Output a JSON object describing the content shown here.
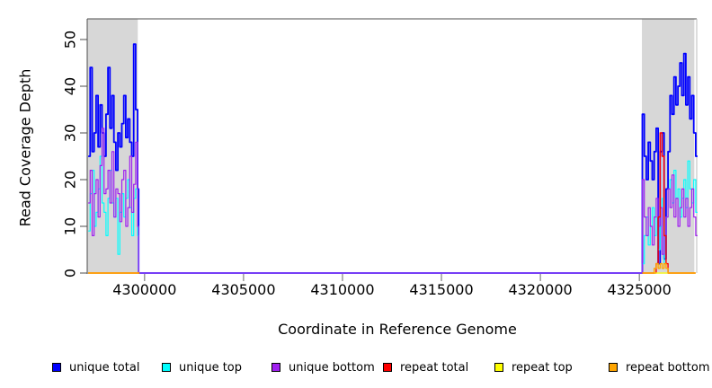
{
  "figure": {
    "xlabel": "Coordinate in Reference Genome",
    "ylabel": "Read Coverage Depth"
  },
  "chart_data": {
    "type": "line",
    "line_style": "step",
    "title": "",
    "xlabel": "Coordinate in Reference Genome",
    "ylabel": "Read Coverage Depth",
    "xlim": [
      4297100,
      4327900
    ],
    "ylim": [
      0,
      54
    ],
    "xticks": [
      4300000,
      4305000,
      4310000,
      4315000,
      4320000,
      4325000
    ],
    "yticks": [
      0,
      10,
      20,
      30,
      40,
      50
    ],
    "grid": false,
    "legend_position": "bottom",
    "shaded_regions": [
      {
        "name": "left-repeat-flank",
        "x0": 4297100,
        "x1": 4299655,
        "color": "#d7d7d7"
      },
      {
        "name": "right-repeat-flank",
        "x0": 4325130,
        "x1": 4327780,
        "color": "#d7d7d7"
      }
    ],
    "series": [
      {
        "name": "unique total",
        "color": "#0000ff",
        "width": 1.8,
        "segments": [
          {
            "x": [
              4297150,
              4297250,
              4297350,
              4297450,
              4297550,
              4297650,
              4297750,
              4297850,
              4297950,
              4298050,
              4298150,
              4298250,
              4298350,
              4298450,
              4298550,
              4298650,
              4298750,
              4298850,
              4298950,
              4299050,
              4299150,
              4299250,
              4299350,
              4299450,
              4299550,
              4299650,
              4299700,
              4325150,
              4325250,
              4325350,
              4325450,
              4325550,
              4325650,
              4325750,
              4325850,
              4325950,
              4326050,
              4326150,
              4326250,
              4326350,
              4326450,
              4326550,
              4326650,
              4326750,
              4326850,
              4326950,
              4327050,
              4327150,
              4327250,
              4327350,
              4327450,
              4327550,
              4327650,
              4327750,
              4327850
            ],
            "y": [
              25,
              44,
              26,
              30,
              38,
              27,
              36,
              30,
              25,
              34,
              44,
              31,
              38,
              28,
              22,
              30,
              27,
              32,
              38,
              29,
              33,
              28,
              25,
              49,
              35,
              18,
              0,
              34,
              25,
              20,
              28,
              24,
              20,
              26,
              31,
              2,
              26,
              30,
              3,
              18,
              26,
              38,
              34,
              42,
              36,
              40,
              45,
              38,
              47,
              36,
              42,
              33,
              38,
              30,
              25
            ]
          }
        ]
      },
      {
        "name": "unique top",
        "color": "#00ffff",
        "width": 1.2,
        "segments": [
          {
            "x": [
              4297150,
              4297250,
              4297350,
              4297450,
              4297550,
              4297650,
              4297750,
              4297850,
              4297950,
              4298050,
              4298150,
              4298250,
              4298350,
              4298450,
              4298550,
              4298650,
              4298750,
              4298850,
              4298950,
              4299050,
              4299150,
              4299250,
              4299350,
              4299450,
              4299550,
              4299650,
              4299700,
              4325150,
              4325250,
              4325350,
              4325450,
              4325550,
              4325650,
              4325750,
              4325850,
              4325950,
              4326050,
              4326150,
              4326250,
              4326350,
              4326450,
              4326550,
              4326650,
              4326750,
              4326850,
              4326950,
              4327050,
              4327150,
              4327250,
              4327350,
              4327450,
              4327550,
              4327650,
              4327750,
              4327850
            ],
            "y": [
              9,
              17,
              22,
              10,
              13,
              18,
              25,
              15,
              13,
              8,
              16,
              22,
              15,
              12,
              16,
              4,
              13,
              17,
              12,
              16,
              20,
              14,
              8,
              16,
              18,
              8,
              0,
              2,
              8,
              12,
              6,
              10,
              14,
              8,
              12,
              5,
              10,
              16,
              2,
              12,
              18,
              20,
              15,
              22,
              16,
              18,
              12,
              16,
              20,
              14,
              24,
              18,
              15,
              20,
              13
            ]
          }
        ]
      },
      {
        "name": "unique bottom",
        "color": "#a020f0",
        "width": 1.2,
        "segments": [
          {
            "x": [
              4297150,
              4297250,
              4297350,
              4297450,
              4297550,
              4297650,
              4297750,
              4297850,
              4297950,
              4298050,
              4298150,
              4298250,
              4298350,
              4298450,
              4298550,
              4298650,
              4298750,
              4298850,
              4298950,
              4299050,
              4299150,
              4299250,
              4299350,
              4299450,
              4299550,
              4299650,
              4299700,
              4325150,
              4325250,
              4325350,
              4325450,
              4325550,
              4325650,
              4325750,
              4325850,
              4325950,
              4326050,
              4326150,
              4326250,
              4326350,
              4326450,
              4326550,
              4326650,
              4326750,
              4326850,
              4326950,
              4327050,
              4327150,
              4327250,
              4327350,
              4327450,
              4327550,
              4327650,
              4327750,
              4327850
            ],
            "y": [
              15,
              22,
              8,
              17,
              20,
              12,
              23,
              31,
              17,
              18,
              22,
              15,
              26,
              12,
              18,
              17,
              11,
              20,
              22,
              10,
              14,
              25,
              13,
              19,
              28,
              10,
              0,
              20,
              12,
              8,
              14,
              10,
              6,
              12,
              16,
              10,
              14,
              4,
              8,
              12,
              18,
              14,
              21,
              12,
              16,
              10,
              14,
              18,
              12,
              16,
              10,
              14,
              18,
              12,
              8
            ]
          }
        ]
      },
      {
        "name": "repeat total",
        "color": "#ff0000",
        "width": 1.4,
        "segments": [
          {
            "x": [
              4297150,
              4297650,
              4298150,
              4298650,
              4299150,
              4299650
            ],
            "y": [
              0,
              0,
              0,
              0,
              0,
              0
            ]
          },
          {
            "x": [
              4325150,
              4325250,
              4325350,
              4325450,
              4325550,
              4325650,
              4325750,
              4325850,
              4325950,
              4326050,
              4326150,
              4326250,
              4326350,
              4326450,
              4326950,
              4327450,
              4327750
            ],
            "y": [
              0,
              0,
              0,
              0,
              0,
              0,
              0,
              2,
              12,
              30,
              25,
              8,
              2,
              0,
              0,
              0,
              0
            ]
          }
        ]
      },
      {
        "name": "repeat top",
        "color": "#ffff00",
        "width": 1.2,
        "segments": [
          {
            "x": [
              4297150,
              4298150,
              4299150,
              4299650
            ],
            "y": [
              0,
              0,
              0,
              0
            ]
          },
          {
            "x": [
              4325150,
              4326150,
              4327150,
              4327750
            ],
            "y": [
              0,
              0,
              0,
              0
            ]
          }
        ]
      },
      {
        "name": "repeat bottom",
        "color": "#ffa500",
        "width": 1.4,
        "segments": [
          {
            "x": [
              4297150,
              4297650,
              4298150,
              4298650,
              4299150,
              4299650
            ],
            "y": [
              0,
              0,
              0,
              0,
              0,
              0
            ]
          },
          {
            "x": [
              4325150,
              4325250,
              4325350,
              4325450,
              4325550,
              4325650,
              4325750,
              4325850,
              4325950,
              4326050,
              4326150,
              4326250,
              4326350,
              4326450,
              4326550,
              4326950,
              4327450,
              4327750
            ],
            "y": [
              0,
              0,
              0,
              0,
              0,
              0,
              1,
              2,
              1,
              2,
              1,
              2,
              1,
              0,
              0,
              0,
              0,
              0
            ]
          }
        ]
      }
    ]
  }
}
